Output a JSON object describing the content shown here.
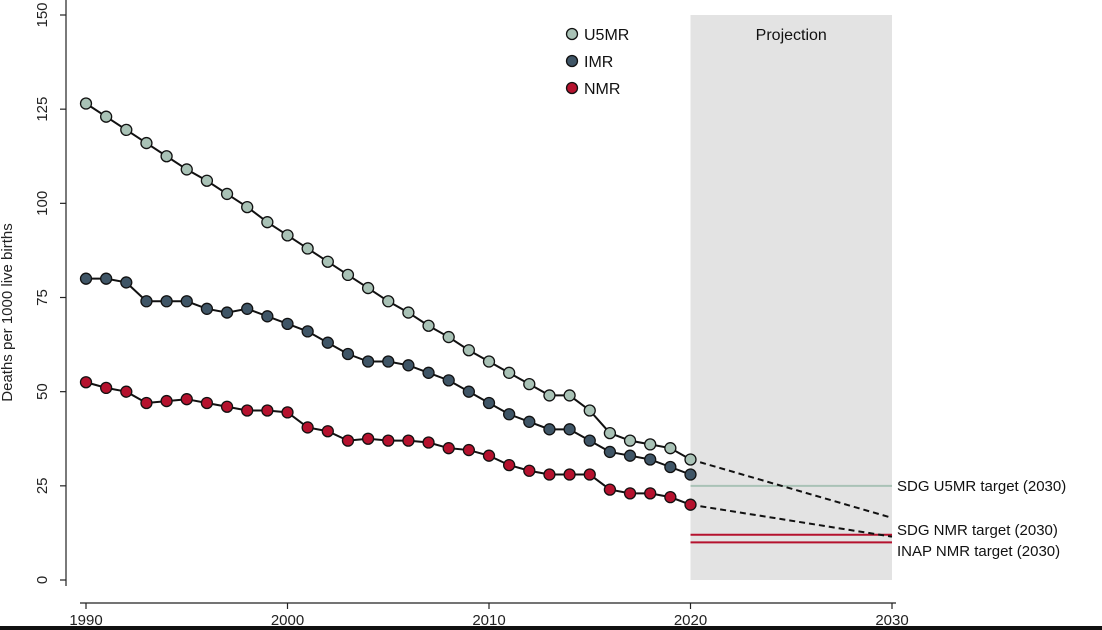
{
  "chart_data": {
    "type": "line",
    "ylabel": "Deaths per 1000 live births",
    "xlabel": "",
    "title": "",
    "xlim": [
      1990,
      2030
    ],
    "ylim": [
      0,
      150
    ],
    "x_ticks": [
      "1990",
      "2000",
      "2010",
      "2020",
      "2030"
    ],
    "y_ticks": [
      "0",
      "25",
      "50",
      "75",
      "100",
      "125",
      "150"
    ],
    "shaded_region": {
      "label": "Projection",
      "x": [
        2020,
        2030
      ],
      "color": "#e3e3e3"
    },
    "legend": {
      "placement": "top-center",
      "entries": [
        "U5MR",
        "IMR",
        "NMR"
      ]
    },
    "years": [
      1990,
      1991,
      1992,
      1993,
      1994,
      1995,
      1996,
      1997,
      1998,
      1999,
      2000,
      2001,
      2002,
      2003,
      2004,
      2005,
      2006,
      2007,
      2008,
      2009,
      2010,
      2011,
      2012,
      2013,
      2014,
      2015,
      2016,
      2017,
      2018,
      2019,
      2020
    ],
    "series": [
      {
        "name": "U5MR",
        "color": "#a9c2b6",
        "values": [
          126.5,
          123,
          119.5,
          116,
          112.5,
          109,
          106,
          102.5,
          99,
          95,
          91.5,
          88,
          84.5,
          81,
          77.5,
          74,
          71,
          67.5,
          64.5,
          61,
          58,
          55,
          52,
          49,
          49,
          45,
          39,
          37,
          36,
          35,
          32
        ],
        "projection": {
          "x": [
            2020,
            2030
          ],
          "y": [
            32,
            16.5
          ]
        }
      },
      {
        "name": "IMR",
        "color": "#3f5566",
        "values": [
          80,
          80,
          79,
          74,
          74,
          74,
          72,
          71,
          72,
          70,
          68,
          66,
          63,
          60,
          58,
          58,
          57,
          55,
          53,
          50,
          47,
          44,
          42,
          40,
          40,
          37,
          34,
          33,
          32,
          30,
          28
        ],
        "projection": null
      },
      {
        "name": "NMR",
        "color": "#b5122e",
        "values": [
          52.5,
          51,
          50,
          47,
          47.5,
          48,
          47,
          46,
          45,
          45,
          44.5,
          40.5,
          39.5,
          37,
          37.5,
          37,
          37,
          36.5,
          35,
          34.5,
          33,
          30.5,
          29,
          28,
          28,
          28,
          24,
          23,
          23,
          22,
          20
        ],
        "projection": {
          "x": [
            2020,
            2030
          ],
          "y": [
            20,
            11.5
          ]
        }
      }
    ],
    "targets": [
      {
        "label": "SDG U5MR target (2030)",
        "value": 25,
        "color": "#a9c2b6"
      },
      {
        "label": "SDG NMR target (2030)",
        "value": 12,
        "color": "#b5122e"
      },
      {
        "label": "INAP NMR target (2030)",
        "value": 10,
        "color": "#b5122e"
      }
    ]
  }
}
